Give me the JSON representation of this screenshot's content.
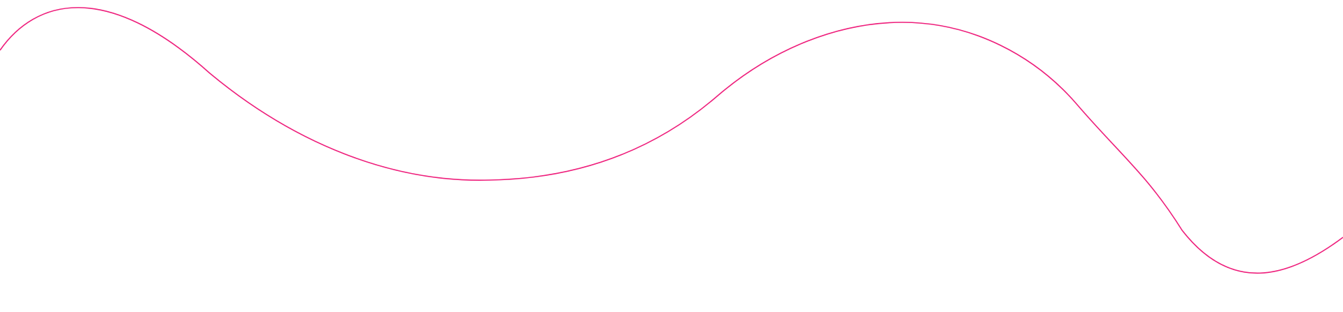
{
  "decoration": {
    "shape": "wavy-line",
    "stroke_color": "#EE1C7A",
    "background_color": "#FFFFFF"
  }
}
